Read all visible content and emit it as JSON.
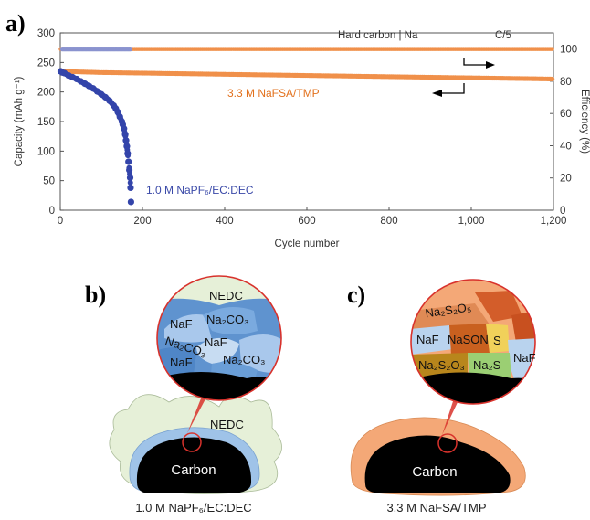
{
  "chart_data": {
    "type": "scatter",
    "panel_label": "a)",
    "xlabel": "Cycle number",
    "ylabel": "Capacity (mAh g⁻¹)",
    "y2label": "Efficiency (%)",
    "xlim": [
      0,
      1200
    ],
    "ylim": [
      0,
      300
    ],
    "y2lim": [
      0,
      110
    ],
    "x_ticks": [
      0,
      200,
      400,
      600,
      800,
      1000,
      1200
    ],
    "x_tick_labels": [
      "0",
      "200",
      "400",
      "600",
      "800",
      "1,000",
      "1,200"
    ],
    "y_ticks": [
      0,
      50,
      100,
      150,
      200,
      250,
      300
    ],
    "y2_ticks": [
      0,
      20,
      40,
      60,
      80,
      100
    ],
    "annotations": {
      "cell": "Hard carbon | Na",
      "rate": "C/5",
      "orange_label": "3.3 M NaFSA/TMP",
      "blue_label": "1.0 M NaPF₆/EC:DEC"
    },
    "colors": {
      "orange": "#f0904a",
      "blue": "#3344aa",
      "blue_eff": "#8a93cf"
    },
    "series": [
      {
        "name": "1.0 M NaPF₆/EC:DEC",
        "axis": "capacity",
        "x": [
          1,
          5,
          10,
          20,
          30,
          40,
          50,
          60,
          70,
          80,
          90,
          100,
          110,
          120,
          130,
          135,
          140,
          145,
          150,
          152,
          155,
          158,
          160,
          162,
          164,
          166,
          168,
          170,
          171,
          172
        ],
        "y": [
          235,
          233,
          232,
          228,
          225,
          222,
          218,
          214,
          210,
          206,
          201,
          196,
          191,
          185,
          177,
          172,
          166,
          158,
          150,
          145,
          138,
          128,
          118,
          108,
          96,
          82,
          68,
          55,
          38,
          14
        ]
      },
      {
        "name": "1.0 M NaPF₆/EC:DEC",
        "axis": "efficiency",
        "x": [
          5,
          20,
          40,
          60,
          80,
          100,
          120,
          140,
          160,
          172
        ],
        "y": [
          100,
          100,
          100,
          100,
          100,
          100,
          100,
          100,
          100,
          100
        ]
      },
      {
        "name": "3.3 M NaFSA/TMP",
        "axis": "capacity",
        "x": [
          1,
          50,
          100,
          200,
          300,
          400,
          500,
          600,
          700,
          800,
          900,
          1000,
          1100,
          1200
        ],
        "y": [
          235,
          234,
          233,
          232,
          231,
          230,
          229,
          228,
          227,
          226,
          225,
          224,
          223,
          222
        ]
      },
      {
        "name": "3.3 M NaFSA/TMP",
        "axis": "efficiency",
        "x": [
          1,
          100,
          200,
          300,
          400,
          500,
          600,
          700,
          800,
          900,
          1000,
          1100,
          1200
        ],
        "y": [
          100,
          100,
          100,
          100,
          100,
          100,
          100,
          100,
          100,
          100,
          100,
          100,
          100
        ]
      }
    ]
  },
  "diagrams": {
    "b": {
      "panel_label": "b)",
      "circle_top": "NEDC",
      "layer_labels": [
        "NaF",
        "Na₂CO₃",
        "NaF",
        "Na₂CO₃",
        "NaF",
        "Na₂CO₃"
      ],
      "sei_label": "NEDC",
      "core_label": "Carbon",
      "caption": "1.0 M NaPF₆/EC:DEC",
      "colors": {
        "outer": "#e6f0d8",
        "sei": "#9fc3e8",
        "core": "#000000",
        "zoom_ring": "#d8322c"
      }
    },
    "c": {
      "panel_label": "c)",
      "layer_labels": [
        "Na₂S₂O₅",
        "NaSON",
        "S",
        "NaF",
        "Na₂S₂O₃",
        "Na₂S",
        "NaF"
      ],
      "core_label": "Carbon",
      "caption": "3.3 M NaFSA/TMP",
      "colors": {
        "outer": "#f4a877",
        "core": "#000000",
        "zoom_ring": "#d8322c"
      }
    }
  }
}
